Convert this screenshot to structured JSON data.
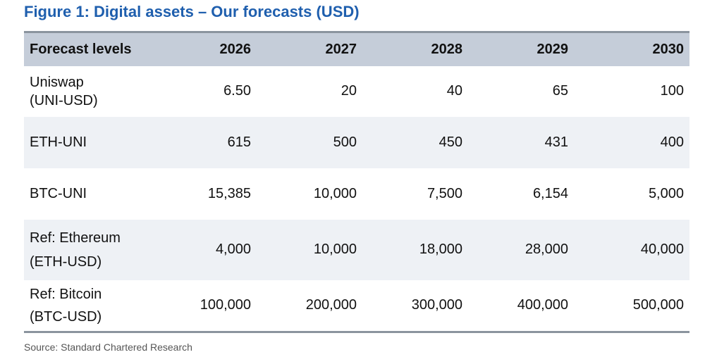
{
  "title": "Figure 1: Digital assets – Our forecasts (USD)",
  "table": {
    "header": [
      "Forecast levels",
      "2026",
      "2027",
      "2028",
      "2029",
      "2030"
    ],
    "rows": [
      {
        "label_lines": [
          "Uniswap",
          "(UNI-USD)"
        ],
        "values": [
          "6.50",
          "20",
          "40",
          "65",
          "100"
        ]
      },
      {
        "label_lines": [
          "ETH-UNI"
        ],
        "values": [
          "615",
          "500",
          "450",
          "431",
          "400"
        ]
      },
      {
        "label_lines": [
          "BTC-UNI"
        ],
        "values": [
          "15,385",
          "10,000",
          "7,500",
          "6,154",
          "5,000"
        ]
      },
      {
        "label_lines": [
          "Ref: Ethereum",
          "(ETH-USD)"
        ],
        "values": [
          "4,000",
          "10,000",
          "18,000",
          "28,000",
          "40,000"
        ]
      },
      {
        "label_lines": [
          "Ref: Bitcoin",
          "(BTC-USD)"
        ],
        "values": [
          "100,000",
          "200,000",
          "300,000",
          "400,000",
          "500,000"
        ]
      }
    ]
  },
  "source": "Source: Standard Chartered Research",
  "colors": {
    "title": "#1f5fae",
    "header_bg": "#c5cdd9",
    "shaded_row_bg": "#eef1f5",
    "rule": "#8b949e"
  }
}
